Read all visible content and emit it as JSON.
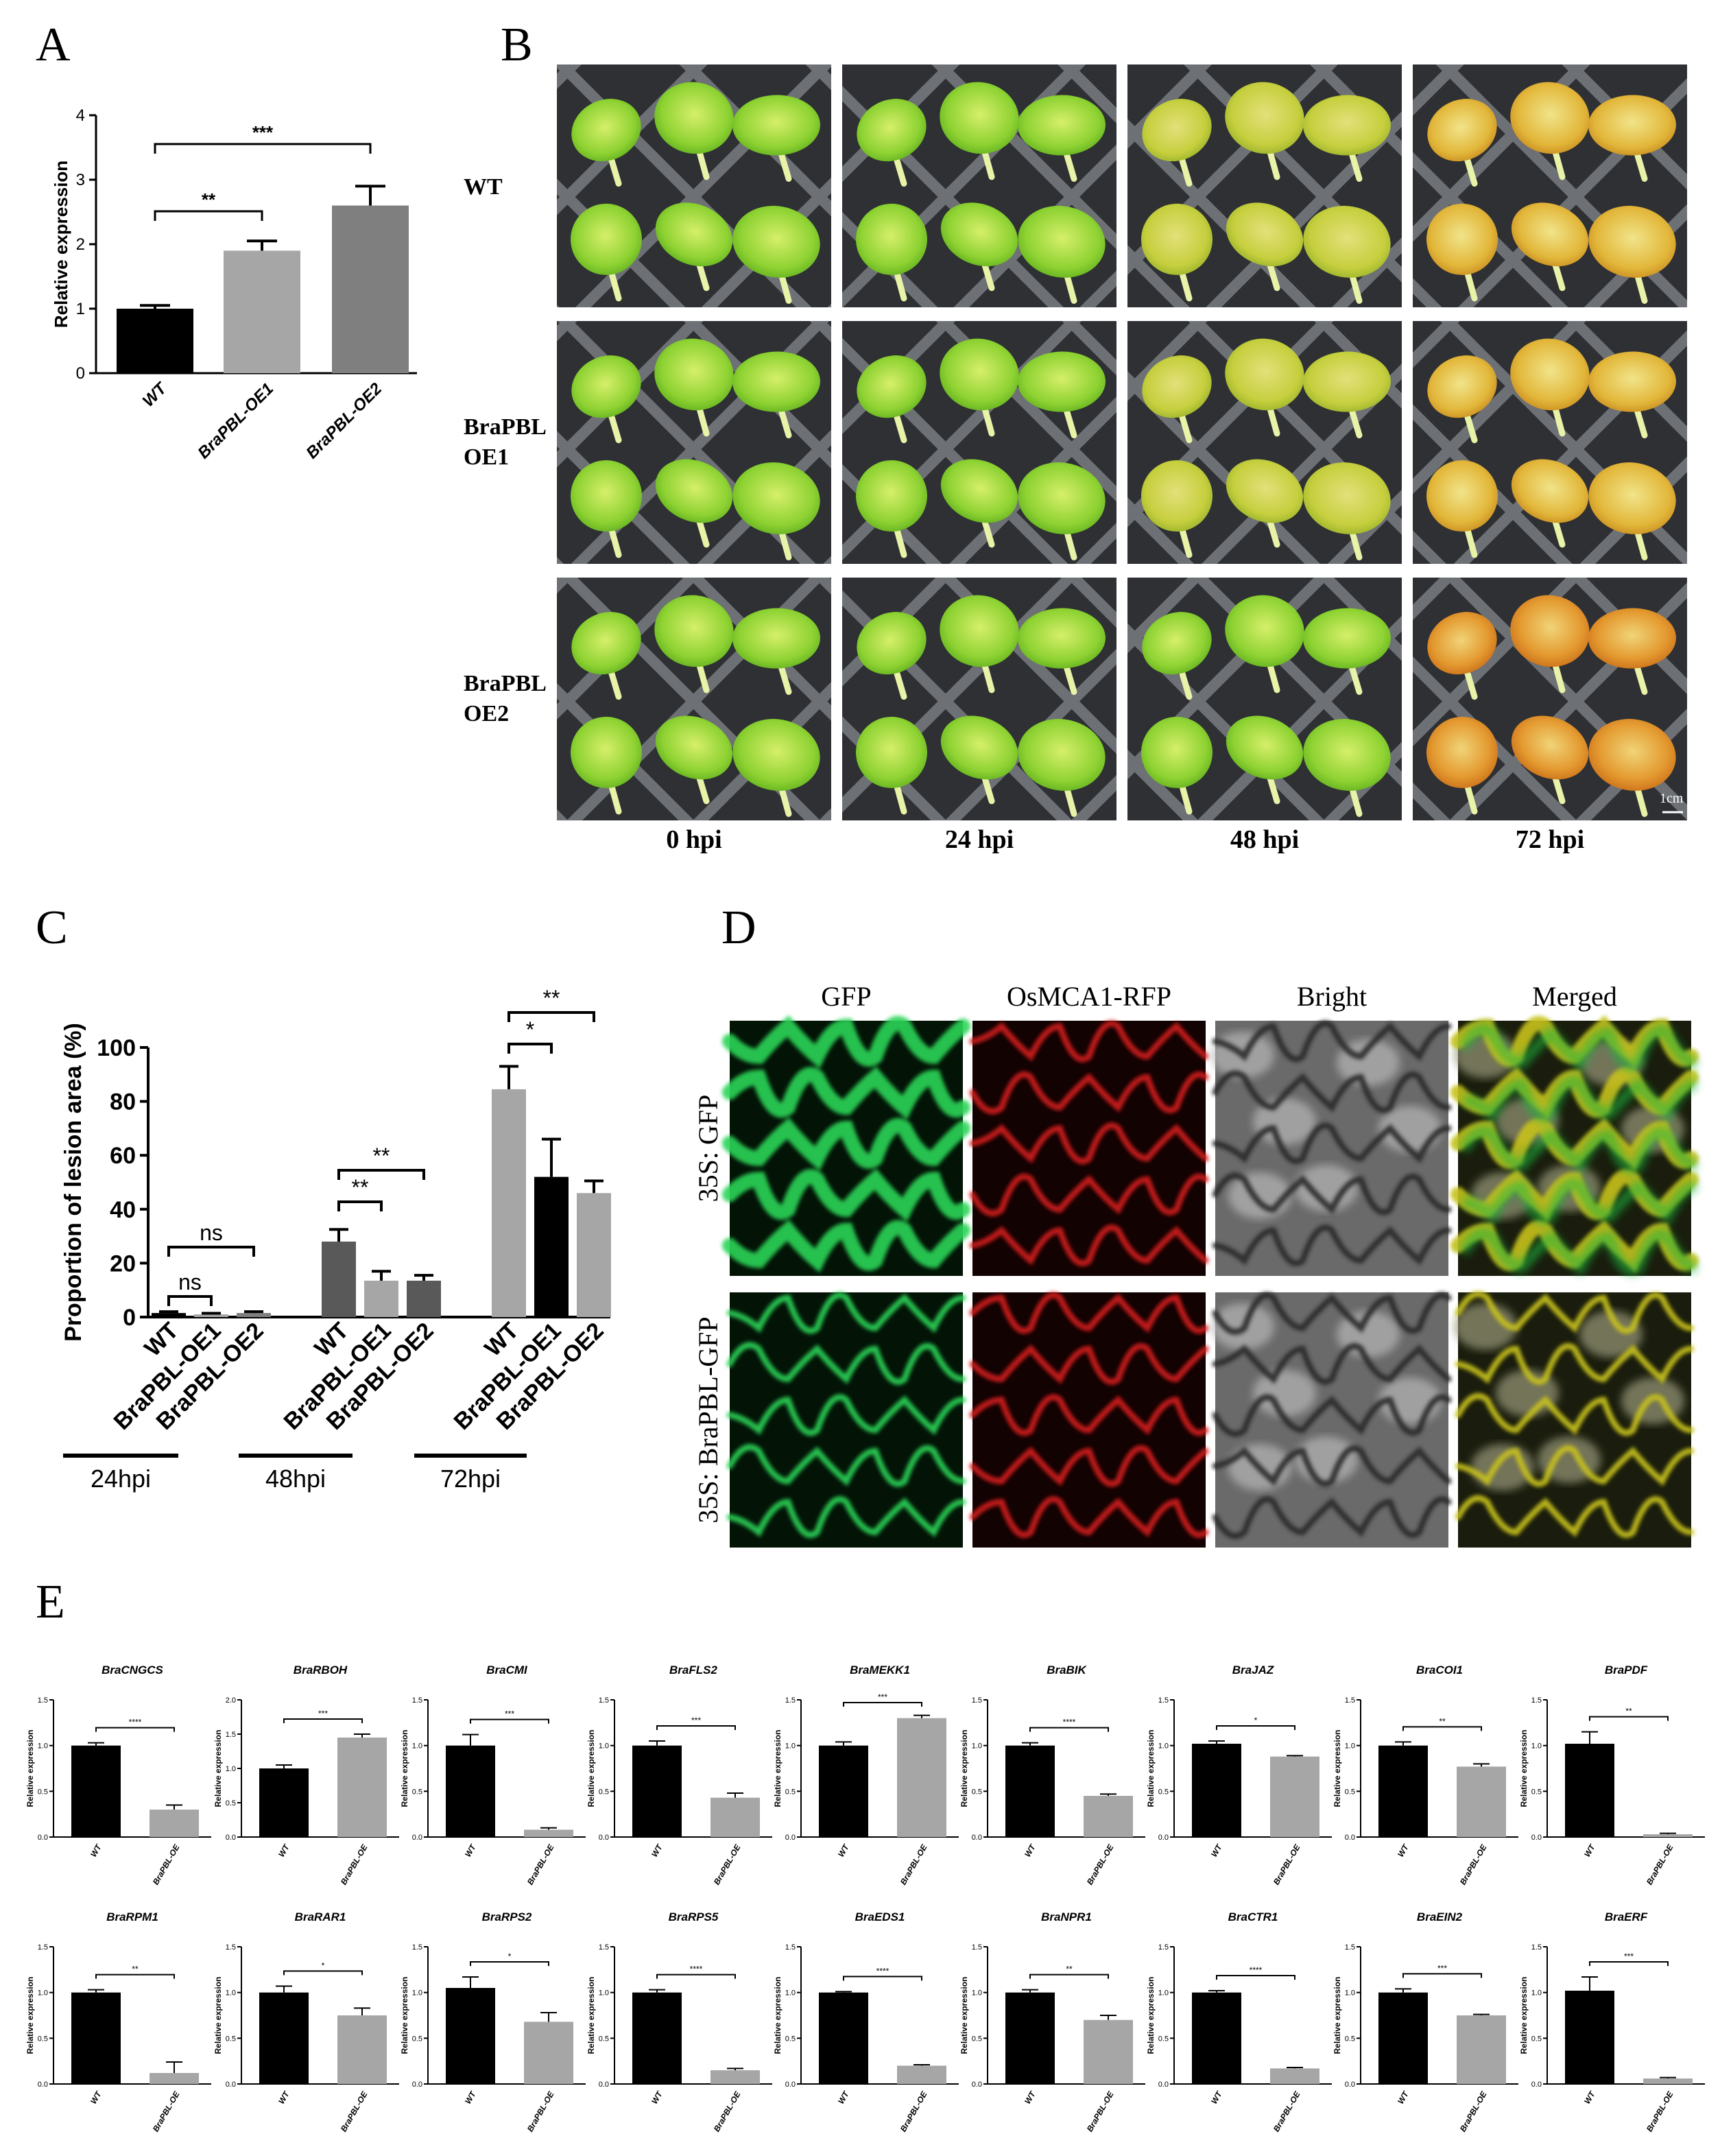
{
  "panels": {
    "a": "A",
    "b": "B",
    "c": "C",
    "d": "D",
    "e": "E"
  },
  "colors": {
    "black": "#000000",
    "light_grey": "#a6a6a6",
    "mid_grey": "#7f7f7f",
    "dark_grey": "#595959"
  },
  "panel_b": {
    "rows": [
      {
        "line1": "WT",
        "line2": ""
      },
      {
        "line1": "BraPBL",
        "line2": "OE1"
      },
      {
        "line1": "BraPBL",
        "line2": "OE2"
      }
    ],
    "cols": [
      "0 hpi",
      "24 hpi",
      "48 hpi",
      "72 hpi"
    ],
    "scale_bar": "1cm"
  },
  "panel_d": {
    "cols": [
      "GFP",
      "OsMCA1-RFP",
      "Bright",
      "Merged"
    ],
    "rows": [
      "35S: GFP",
      "35S: BraPBL-GFP"
    ]
  },
  "chart_data": [
    {
      "id": "A",
      "type": "bar",
      "categories": [
        "WT",
        "BraPBL-OE1",
        "BraPBL-OE2"
      ],
      "values": [
        1.0,
        1.9,
        2.6
      ],
      "errors": [
        0.05,
        0.15,
        0.3
      ],
      "colors": [
        "#000000",
        "#a6a6a6",
        "#7f7f7f"
      ],
      "ylabel": "Relative expression",
      "ylim": [
        0,
        4
      ],
      "yticks": [
        "0",
        "1",
        "2",
        "3",
        "4"
      ],
      "sig": [
        {
          "from": 0,
          "to": 1,
          "label": "**"
        },
        {
          "from": 0,
          "to": 2,
          "label": "***"
        }
      ]
    },
    {
      "id": "C",
      "type": "bar",
      "ylabel": "Proportion of lesion area (%)",
      "ylim": [
        0,
        100
      ],
      "yticks": [
        "0",
        "20",
        "40",
        "60",
        "80",
        "100"
      ],
      "groups": [
        {
          "label": "24hpi",
          "categories": [
            "WT",
            "BraPBL-OE1",
            "BraPBL-OE2"
          ],
          "values": [
            1.5,
            1.0,
            1.5
          ],
          "errors": [
            0.5,
            0.4,
            0.5
          ],
          "colors": [
            "#000000",
            "#a6a6a6",
            "#7f7f7f"
          ],
          "sig": [
            {
              "from": 0,
              "to": 1,
              "label": "ns"
            },
            {
              "from": 0,
              "to": 2,
              "label": "ns"
            }
          ]
        },
        {
          "label": "48hpi",
          "categories": [
            "WT",
            "BraPBL-OE1",
            "BraPBL-OE2"
          ],
          "values": [
            28,
            13.5,
            13.5
          ],
          "errors": [
            4.5,
            3.5,
            2.0
          ],
          "colors": [
            "#595959",
            "#a6a6a6",
            "#595959"
          ],
          "sig": [
            {
              "from": 0,
              "to": 1,
              "label": "**"
            },
            {
              "from": 0,
              "to": 2,
              "label": "**"
            }
          ]
        },
        {
          "label": "72hpi",
          "categories": [
            "WT",
            "BraPBL-OE1",
            "BraPBL-OE2"
          ],
          "values": [
            84.5,
            52,
            46
          ],
          "errors": [
            8.5,
            14,
            4.5
          ],
          "colors": [
            "#a6a6a6",
            "#000000",
            "#a6a6a6"
          ],
          "sig": [
            {
              "from": 0,
              "to": 1,
              "label": "*"
            },
            {
              "from": 0,
              "to": 2,
              "label": "**"
            }
          ]
        }
      ]
    },
    {
      "id": "E",
      "type": "bar",
      "categories": [
        "WT",
        "BraPBL-OE"
      ],
      "ylabel": "Relative expression",
      "series": [
        {
          "name": "BraCNGCS",
          "values": [
            1.0,
            0.3
          ],
          "errors": [
            0.03,
            0.05
          ],
          "ymax": 1.5,
          "yticks": [
            "0.0",
            "0.5",
            "1.0",
            "1.5"
          ],
          "sig": "****"
        },
        {
          "name": "BraRBOH",
          "values": [
            1.0,
            1.45
          ],
          "errors": [
            0.05,
            0.05
          ],
          "ymax": 2.0,
          "yticks": [
            "0.0",
            "0.5",
            "1.0",
            "1.5",
            "2.0"
          ],
          "sig": "***"
        },
        {
          "name": "BraCMI",
          "values": [
            1.0,
            0.08
          ],
          "errors": [
            0.12,
            0.02
          ],
          "ymax": 1.5,
          "yticks": [
            "0.0",
            "0.5",
            "1.0",
            "1.5"
          ],
          "sig": "***"
        },
        {
          "name": "BraFLS2",
          "values": [
            1.0,
            0.43
          ],
          "errors": [
            0.05,
            0.05
          ],
          "ymax": 1.5,
          "yticks": [
            "0.0",
            "0.5",
            "1.0",
            "1.5"
          ],
          "sig": "***"
        },
        {
          "name": "BraMEKK1",
          "values": [
            1.0,
            1.3
          ],
          "errors": [
            0.04,
            0.03
          ],
          "ymax": 1.5,
          "yticks": [
            "0.0",
            "0.5",
            "1.0",
            "1.5"
          ],
          "sig": "***"
        },
        {
          "name": "BraBIK",
          "values": [
            1.0,
            0.45
          ],
          "errors": [
            0.03,
            0.02
          ],
          "ymax": 1.5,
          "yticks": [
            "0.0",
            "0.5",
            "1.0",
            "1.5"
          ],
          "sig": "****"
        },
        {
          "name": "BraJAZ",
          "values": [
            1.02,
            0.88
          ],
          "errors": [
            0.03,
            0.01
          ],
          "ymax": 1.5,
          "yticks": [
            "0.0",
            "0.5",
            "1.0",
            "1.5"
          ],
          "sig": "*"
        },
        {
          "name": "BraCOI1",
          "values": [
            1.0,
            0.77
          ],
          "errors": [
            0.04,
            0.03
          ],
          "ymax": 1.5,
          "yticks": [
            "0.0",
            "0.5",
            "1.0",
            "1.5"
          ],
          "sig": "**"
        },
        {
          "name": "BraPDF",
          "values": [
            1.02,
            0.03
          ],
          "errors": [
            0.13,
            0.01
          ],
          "ymax": 1.5,
          "yticks": [
            "0.0",
            "0.5",
            "1.0",
            "1.5"
          ],
          "sig": "**"
        },
        {
          "name": "BraRPM1",
          "values": [
            1.0,
            0.12
          ],
          "errors": [
            0.03,
            0.12
          ],
          "ymax": 1.5,
          "yticks": [
            "0.0",
            "0.5",
            "1.0",
            "1.5"
          ],
          "sig": "**"
        },
        {
          "name": "BraRAR1",
          "values": [
            1.0,
            0.75
          ],
          "errors": [
            0.07,
            0.08
          ],
          "ymax": 1.5,
          "yticks": [
            "0.0",
            "0.5",
            "1.0",
            "1.5"
          ],
          "sig": "*"
        },
        {
          "name": "BraRPS2",
          "values": [
            1.05,
            0.68
          ],
          "errors": [
            0.12,
            0.1
          ],
          "ymax": 1.5,
          "yticks": [
            "0.0",
            "0.5",
            "1.0",
            "1.5"
          ],
          "sig": "*"
        },
        {
          "name": "BraRPS5",
          "values": [
            1.0,
            0.15
          ],
          "errors": [
            0.03,
            0.02
          ],
          "ymax": 1.5,
          "yticks": [
            "0.0",
            "0.5",
            "1.0",
            "1.5"
          ],
          "sig": "****"
        },
        {
          "name": "BraEDS1",
          "values": [
            1.0,
            0.2
          ],
          "errors": [
            0.01,
            0.01
          ],
          "ymax": 1.5,
          "yticks": [
            "0.0",
            "0.5",
            "1.0",
            "1.5"
          ],
          "sig": "****"
        },
        {
          "name": "BraNPR1",
          "values": [
            1.0,
            0.7
          ],
          "errors": [
            0.03,
            0.05
          ],
          "ymax": 1.5,
          "yticks": [
            "0.0",
            "0.5",
            "1.0",
            "1.5"
          ],
          "sig": "**"
        },
        {
          "name": "BraCTR1",
          "values": [
            1.0,
            0.17
          ],
          "errors": [
            0.02,
            0.01
          ],
          "ymax": 1.5,
          "yticks": [
            "0.0",
            "0.5",
            "1.0",
            "1.5"
          ],
          "sig": "****"
        },
        {
          "name": "BraEIN2",
          "values": [
            1.0,
            0.75
          ],
          "errors": [
            0.04,
            0.01
          ],
          "ymax": 1.5,
          "yticks": [
            "0.0",
            "0.5",
            "1.0",
            "1.5"
          ],
          "sig": "***"
        },
        {
          "name": "BraERF",
          "values": [
            1.02,
            0.06
          ],
          "errors": [
            0.15,
            0.01
          ],
          "ymax": 1.5,
          "yticks": [
            "0.0",
            "0.5",
            "1.0",
            "1.5"
          ],
          "sig": "***"
        }
      ]
    }
  ]
}
